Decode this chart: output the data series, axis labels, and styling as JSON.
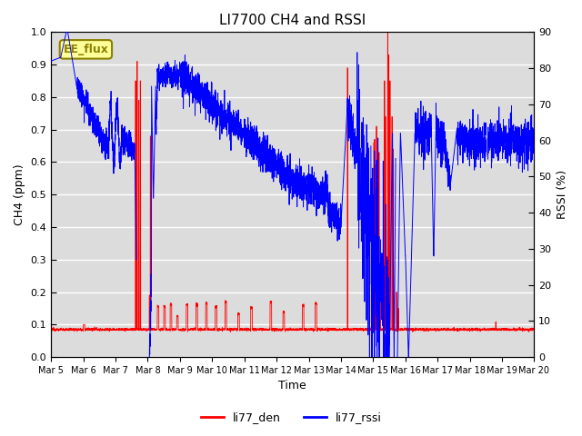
{
  "title": "LI7700 CH4 and RSSI",
  "xlabel": "Time",
  "ylabel_left": "CH4 (ppm)",
  "ylabel_right": "RSSI (%)",
  "ylim_left": [
    0.0,
    1.0
  ],
  "ylim_right": [
    0,
    90
  ],
  "yticks_left": [
    0.0,
    0.1,
    0.2,
    0.3,
    0.4,
    0.5,
    0.6,
    0.7,
    0.8,
    0.9,
    1.0
  ],
  "yticks_right": [
    0,
    10,
    20,
    30,
    40,
    50,
    60,
    70,
    80,
    90
  ],
  "xtick_labels": [
    "Mar 5",
    "Mar 6",
    "Mar 7",
    "Mar 8",
    "Mar 9",
    "Mar 10",
    "Mar 11",
    "Mar 12",
    "Mar 13",
    "Mar 14",
    "Mar 15",
    "Mar 16",
    "Mar 17",
    "Mar 18",
    "Mar 19",
    "Mar 20"
  ],
  "color_ch4": "#ff0000",
  "color_rssi": "#0000ff",
  "legend_labels": [
    "li77_den",
    "li77_rssi"
  ],
  "annotation_text": "EE_flux",
  "annotation_color": "#8B8000",
  "annotation_bg": "#ffff99",
  "background_color": "#dcdcdc",
  "title_fontsize": 11,
  "label_fontsize": 9,
  "tick_fontsize": 8
}
